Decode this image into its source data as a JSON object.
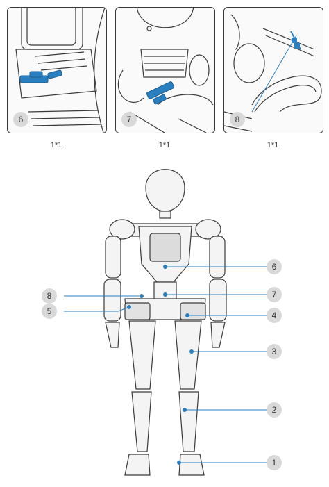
{
  "panels": [
    {
      "badge": "6",
      "caption": "1*1"
    },
    {
      "badge": "7",
      "caption": "1*1"
    },
    {
      "badge": "8",
      "caption": "1*1"
    }
  ],
  "callouts": {
    "left": [
      "8",
      "5"
    ],
    "right": [
      "6",
      "7",
      "4",
      "3",
      "2",
      "1"
    ]
  },
  "colors": {
    "accent": "#2a7fc0",
    "outline": "#3a3a3a",
    "badge": "#d9d9d9"
  }
}
